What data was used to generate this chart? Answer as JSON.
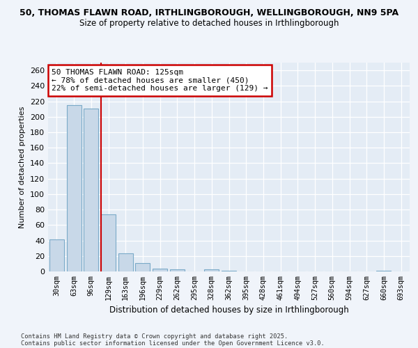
{
  "title_line1": "50, THOMAS FLAWN ROAD, IRTHLINGBOROUGH, WELLINGBOROUGH, NN9 5PA",
  "title_line2": "Size of property relative to detached houses in Irthlingborough",
  "xlabel": "Distribution of detached houses by size in Irthlingborough",
  "ylabel": "Number of detached properties",
  "categories": [
    "30sqm",
    "63sqm",
    "96sqm",
    "129sqm",
    "163sqm",
    "196sqm",
    "229sqm",
    "262sqm",
    "295sqm",
    "328sqm",
    "362sqm",
    "395sqm",
    "428sqm",
    "461sqm",
    "494sqm",
    "527sqm",
    "560sqm",
    "594sqm",
    "627sqm",
    "660sqm",
    "693sqm"
  ],
  "values": [
    41,
    215,
    211,
    74,
    23,
    11,
    4,
    3,
    0,
    3,
    1,
    0,
    0,
    0,
    0,
    0,
    0,
    0,
    0,
    1,
    0
  ],
  "bar_color": "#c8d8e8",
  "bar_edge_color": "#7aaac8",
  "annotation_line1": "50 THOMAS FLAWN ROAD: 125sqm",
  "annotation_line2": "← 78% of detached houses are smaller (450)",
  "annotation_line3": "22% of semi-detached houses are larger (129) →",
  "annotation_box_color": "#ffffff",
  "annotation_box_edge": "#cc0000",
  "marker_line_color": "#cc0000",
  "ylim": [
    0,
    270
  ],
  "yticks": [
    0,
    20,
    40,
    60,
    80,
    100,
    120,
    140,
    160,
    180,
    200,
    220,
    240,
    260
  ],
  "footer_line1": "Contains HM Land Registry data © Crown copyright and database right 2025.",
  "footer_line2": "Contains public sector information licensed under the Open Government Licence v3.0.",
  "bg_color": "#f0f4fa",
  "plot_bg_color": "#e4ecf5"
}
